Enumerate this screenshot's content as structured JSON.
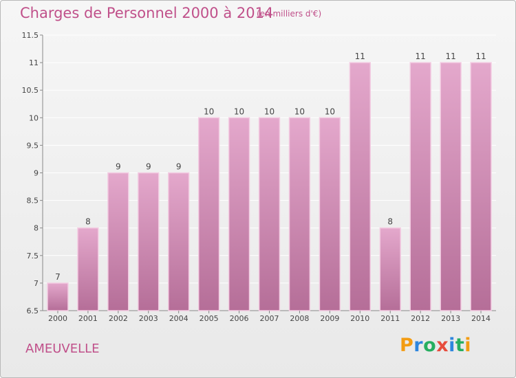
{
  "header": {
    "title": "Charges de Personnel 2000 à 2014",
    "subtitle": "(en milliers d'€)"
  },
  "footer": {
    "place": "AMEUVELLE",
    "logo": {
      "letters": [
        "P",
        "r",
        "o",
        "x",
        "i",
        "t",
        "i"
      ],
      "colors": [
        "#f39c12",
        "#2e86de",
        "#27ae60",
        "#e74c3c",
        "#2e86de",
        "#27ae60",
        "#f39c12"
      ]
    }
  },
  "colors": {
    "bar_top": "#e4a8cc",
    "bar_bottom": "#b56e98",
    "bar_stroke": "#f3cce2",
    "text": "#444444",
    "grid": "#ffffff",
    "accent": "#c0508a"
  },
  "chart_data": {
    "type": "bar",
    "categories": [
      "2000",
      "2001",
      "2002",
      "2003",
      "2004",
      "2005",
      "2006",
      "2007",
      "2008",
      "2009",
      "2010",
      "2011",
      "2012",
      "2013",
      "2014"
    ],
    "values": [
      7,
      8,
      9,
      9,
      9,
      10,
      10,
      10,
      10,
      10,
      11,
      8,
      11,
      11,
      11
    ],
    "value_labels": [
      "7",
      "8",
      "9",
      "9",
      "9",
      "10",
      "10",
      "10",
      "10",
      "10",
      "11",
      "8",
      "11",
      "11",
      "11"
    ],
    "title": "Charges de Personnel 2000 à 2014",
    "xlabel": "",
    "ylabel": "",
    "ylim": [
      6.5,
      11.5
    ],
    "yticks": [
      6.5,
      7,
      7.5,
      8,
      8.5,
      9,
      9.5,
      10,
      10.5,
      11,
      11.5
    ],
    "ytick_labels": [
      "6.5",
      "7",
      "7.5",
      "8",
      "8.5",
      "9",
      "9.5",
      "10",
      "10.5",
      "11",
      "11.5"
    ],
    "grid": true,
    "legend": "none"
  }
}
